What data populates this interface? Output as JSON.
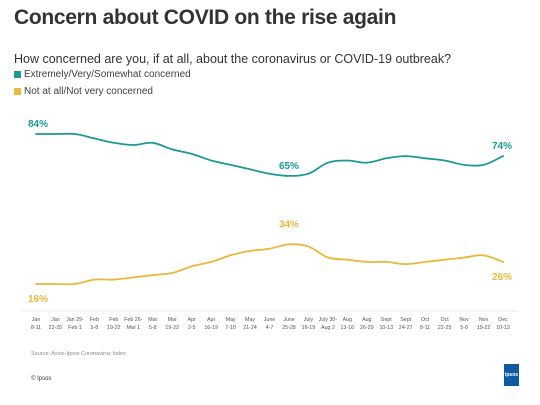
{
  "title": "Concern about COVID on the rise again",
  "subtitle": "How concerned are you, if at all, about the coronavirus or COVID-19 outbreak?",
  "source": "Source: Axios-Ipsos Coronavirus Index",
  "copyright": "© Ipsos",
  "logo_text": "Ipsos",
  "chart_data": {
    "type": "line",
    "categories": [
      [
        "Jan",
        "8-11"
      ],
      [
        "Jan",
        "22-25"
      ],
      [
        "Jan 29-",
        "Feb 1"
      ],
      [
        "Feb",
        "5-8"
      ],
      [
        "Feb",
        "19-22"
      ],
      [
        "Feb 26-",
        "Mar 1"
      ],
      [
        "Mar",
        "5-8"
      ],
      [
        "Mar",
        "19-22"
      ],
      [
        "Apr",
        "2-5"
      ],
      [
        "Apr",
        "16-19"
      ],
      [
        "May",
        "7-10"
      ],
      [
        "May",
        "21-24"
      ],
      [
        "June",
        "4-7"
      ],
      [
        "June",
        "25-28"
      ],
      [
        "July",
        "16-19"
      ],
      [
        "July 30-",
        "Aug 2"
      ],
      [
        "Aug",
        "13-16"
      ],
      [
        "Aug",
        "26-29"
      ],
      [
        "Sept",
        "10-13"
      ],
      [
        "Sept",
        "24-27"
      ],
      [
        "Oct",
        "8-11"
      ],
      [
        "Oct",
        "22-25"
      ],
      [
        "Nov",
        "5-8"
      ],
      [
        "Nov",
        "19-22"
      ],
      [
        "Dec",
        "10-13"
      ]
    ],
    "ylim": [
      0,
      100
    ],
    "grid": false,
    "legend_position": "top-left",
    "series": [
      {
        "name": "Extremely/Very/Somewhat  concerned",
        "color": "#1a9a93",
        "values": [
          84,
          84,
          84,
          82,
          80,
          79,
          80,
          77,
          75,
          72,
          70,
          68,
          66,
          65,
          66,
          71,
          72,
          71,
          73,
          74,
          73,
          72,
          70,
          70,
          74
        ],
        "labels": [
          {
            "index": 0,
            "text": "84%"
          },
          {
            "index": 13,
            "text": "65%"
          },
          {
            "index": 24,
            "text": "74%"
          }
        ]
      },
      {
        "name": "Not at all/Not very concerned",
        "color": "#e8b93c",
        "values": [
          16,
          16,
          16,
          18,
          18,
          19,
          20,
          21,
          24,
          26,
          29,
          31,
          32,
          34,
          33,
          28,
          27,
          26,
          26,
          25,
          26,
          27,
          28,
          29,
          26
        ],
        "labels": [
          {
            "index": 0,
            "text": "16%"
          },
          {
            "index": 13,
            "text": "34%"
          },
          {
            "index": 24,
            "text": "26%"
          }
        ]
      }
    ]
  }
}
